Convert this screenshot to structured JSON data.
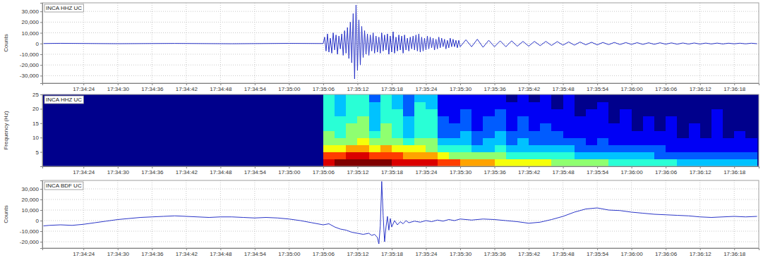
{
  "chart_data": [
    {
      "type": "line",
      "title": "INCA HHZ UC",
      "y_label": "Counts",
      "color": "#2a35c8",
      "grid": true,
      "xlim": [
        16.8,
        142.3
      ],
      "ylim": [
        -37000,
        38000
      ],
      "xticks": [
        {
          "value": 24,
          "label": "17:34:24"
        },
        {
          "value": 30,
          "label": "17:34:30"
        },
        {
          "value": 36,
          "label": "17:34:36"
        },
        {
          "value": 42,
          "label": "17:34:42"
        },
        {
          "value": 48,
          "label": "17:34:48"
        },
        {
          "value": 54,
          "label": "17:34:54"
        },
        {
          "value": 60,
          "label": "17:35:00"
        },
        {
          "value": 66,
          "label": "17:35:06"
        },
        {
          "value": 72,
          "label": "17:35:12"
        },
        {
          "value": 78,
          "label": "17:35:18"
        },
        {
          "value": 84,
          "label": "17:35:24"
        },
        {
          "value": 90,
          "label": "17:35:30"
        },
        {
          "value": 96,
          "label": "17:35:36"
        },
        {
          "value": 102,
          "label": "17:35:42"
        },
        {
          "value": 108,
          "label": "17:35:48"
        },
        {
          "value": 114,
          "label": "17:35:54"
        },
        {
          "value": 120,
          "label": "17:36:00"
        },
        {
          "value": 126,
          "label": "17:36:06"
        },
        {
          "value": 132,
          "label": "17:36:12"
        },
        {
          "value": 138,
          "label": "17:36:18"
        }
      ],
      "yticks": [
        {
          "value": 30000,
          "label": "30,000"
        },
        {
          "value": 20000,
          "label": "20,000"
        },
        {
          "value": 10000,
          "label": "10,000"
        },
        0,
        {
          "value": -10000,
          "label": "-10,000"
        },
        {
          "value": -20000,
          "label": "-20,000"
        },
        {
          "value": -30000,
          "label": "-30,000"
        }
      ],
      "x": [
        17,
        20,
        30,
        40,
        50,
        60,
        66,
        66.25,
        66.5,
        66.75,
        67,
        67.25,
        67.5,
        67.75,
        68,
        68.25,
        68.5,
        68.75,
        69,
        69.25,
        69.5,
        69.75,
        70,
        70.25,
        70.5,
        70.75,
        71,
        71.25,
        71.5,
        71.75,
        72,
        72.25,
        72.5,
        72.75,
        73,
        73.25,
        73.5,
        73.75,
        74,
        74.25,
        74.5,
        74.75,
        75,
        75.25,
        75.5,
        75.75,
        76,
        76.25,
        76.5,
        76.75,
        77,
        77.25,
        77.5,
        77.75,
        78,
        78.25,
        78.5,
        78.75,
        79,
        79.25,
        79.5,
        79.75,
        80,
        80.25,
        80.5,
        80.75,
        81,
        81.25,
        81.5,
        81.75,
        82,
        82.25,
        82.5,
        82.75,
        83,
        83.25,
        83.5,
        83.75,
        84,
        84.25,
        84.5,
        84.75,
        85,
        85.25,
        85.5,
        85.75,
        86,
        86.25,
        86.5,
        86.75,
        87,
        87.25,
        87.5,
        87.75,
        88,
        88.25,
        88.5,
        88.75,
        89,
        89.25,
        89.5,
        89.75,
        90,
        91,
        92,
        93,
        94,
        95,
        96,
        97,
        98,
        99,
        100,
        101,
        102,
        103,
        104,
        105,
        106,
        107,
        108,
        109,
        110,
        111,
        112,
        113,
        114,
        115,
        116,
        117,
        118,
        119,
        120,
        121,
        122,
        123,
        124,
        125,
        126,
        127,
        128,
        129,
        130,
        131,
        132,
        133,
        134,
        135,
        136,
        137,
        138,
        139,
        140,
        141,
        142
      ],
      "values": [
        0,
        200,
        -150,
        100,
        -200,
        150,
        0,
        6000,
        -7000,
        9000,
        -8000,
        5000,
        -9000,
        10000,
        -6000,
        8000,
        -10000,
        7000,
        -5000,
        9000,
        -11000,
        12000,
        -9000,
        15000,
        -14000,
        20000,
        -18000,
        28000,
        -33000,
        36000,
        -25000,
        22000,
        -20000,
        16000,
        -13000,
        12000,
        -10000,
        9000,
        -11000,
        8000,
        -7000,
        10000,
        -9000,
        7000,
        -8000,
        6000,
        -9000,
        10000,
        -7000,
        8000,
        -6000,
        9000,
        -10000,
        7000,
        -8000,
        11000,
        -9000,
        6000,
        -7000,
        8000,
        -6000,
        7000,
        -9000,
        8000,
        -6000,
        5000,
        -7000,
        6000,
        -5000,
        7000,
        -6000,
        8000,
        -7000,
        9000,
        -8000,
        6000,
        -7000,
        5000,
        -6000,
        7000,
        -5000,
        6000,
        -4000,
        5000,
        -6000,
        4000,
        -5000,
        6000,
        -4000,
        5000,
        -3000,
        4000,
        -5000,
        3000,
        -4000,
        5000,
        -3000,
        4000,
        -3000,
        3000,
        -4000,
        3000,
        -3000,
        3500,
        -3000,
        4000,
        -3500,
        3000,
        -3000,
        2500,
        -3000,
        2500,
        -2500,
        2000,
        -2500,
        2000,
        -2000,
        2000,
        -1800,
        1800,
        -1500,
        1500,
        -1500,
        1400,
        -1200,
        1200,
        -1200,
        1000,
        -1000,
        1000,
        -900,
        900,
        -800,
        800,
        -800,
        700,
        -700,
        700,
        -600,
        600,
        -600,
        500,
        -500,
        500,
        -500,
        400,
        -400,
        400,
        -400,
        300,
        -300,
        300,
        -300,
        300,
        -200
      ]
    },
    {
      "type": "heatmap",
      "title": "INCA HHZ UC",
      "y_label": "Frequency (Hz)",
      "grid": false,
      "xlim": [
        16.8,
        142.3
      ],
      "ylim": [
        0,
        25
      ],
      "zlim": [
        0,
        10
      ],
      "xticks": [
        {
          "value": 24,
          "label": "17:34:24"
        },
        {
          "value": 30,
          "label": "17:34:30"
        },
        {
          "value": 36,
          "label": "17:34:36"
        },
        {
          "value": 42,
          "label": "17:34:42"
        },
        {
          "value": 48,
          "label": "17:34:48"
        },
        {
          "value": 54,
          "label": "17:34:54"
        },
        {
          "value": 60,
          "label": "17:35:00"
        },
        {
          "value": 66,
          "label": "17:35:06"
        },
        {
          "value": 72,
          "label": "17:35:12"
        },
        {
          "value": 78,
          "label": "17:35:18"
        },
        {
          "value": 84,
          "label": "17:35:24"
        },
        {
          "value": 90,
          "label": "17:35:30"
        },
        {
          "value": 96,
          "label": "17:35:36"
        },
        {
          "value": 102,
          "label": "17:35:42"
        },
        {
          "value": 108,
          "label": "17:35:48"
        },
        {
          "value": 114,
          "label": "17:35:54"
        },
        {
          "value": 120,
          "label": "17:36:00"
        },
        {
          "value": 126,
          "label": "17:36:06"
        },
        {
          "value": 132,
          "label": "17:36:12"
        },
        {
          "value": 138,
          "label": "17:36:18"
        }
      ],
      "yticks": [
        5,
        10,
        15,
        20,
        25
      ],
      "time_bins": [
        66,
        68,
        70,
        72,
        74,
        76,
        78,
        80,
        82,
        84,
        86,
        88,
        90,
        92,
        94,
        96,
        98,
        100,
        102,
        104,
        106,
        108,
        110,
        112,
        114,
        116,
        118,
        120,
        122,
        124,
        126,
        128,
        130,
        132,
        134,
        136,
        138,
        140,
        142
      ],
      "freq_bins": [
        0,
        2.5,
        5,
        7.5,
        10,
        12.5,
        15,
        17.5,
        20,
        22.5,
        25
      ],
      "z": [
        [
          9,
          8,
          6,
          5,
          5,
          4,
          4,
          4,
          4,
          4
        ],
        [
          10,
          8,
          6,
          5,
          4,
          4,
          4,
          3,
          3,
          3
        ],
        [
          10,
          9,
          7,
          5,
          5,
          5,
          4,
          4,
          4,
          4
        ],
        [
          10,
          9,
          7,
          6,
          5,
          5,
          5,
          4,
          4,
          4
        ],
        [
          10,
          8,
          6,
          5,
          4,
          3,
          3,
          3,
          3,
          2
        ],
        [
          10,
          8,
          7,
          5,
          5,
          5,
          4,
          4,
          4,
          4
        ],
        [
          9,
          8,
          6,
          5,
          4,
          4,
          4,
          4,
          3,
          3
        ],
        [
          9,
          7,
          6,
          4,
          3,
          3,
          3,
          2,
          2,
          2
        ],
        [
          9,
          7,
          6,
          5,
          4,
          4,
          4,
          4,
          4,
          3
        ],
        [
          9,
          7,
          5,
          5,
          4,
          4,
          4,
          4,
          3,
          3
        ],
        [
          8,
          6,
          4,
          3,
          2,
          2,
          2,
          1,
          1,
          1
        ],
        [
          8,
          5,
          4,
          3,
          2,
          2,
          1,
          1,
          1,
          1
        ],
        [
          7,
          5,
          4,
          3,
          3,
          2,
          2,
          2,
          1,
          1
        ],
        [
          7,
          5,
          3,
          2,
          2,
          1,
          1,
          1,
          1,
          1
        ],
        [
          7,
          5,
          3,
          3,
          2,
          2,
          2,
          1,
          1,
          1
        ],
        [
          6,
          5,
          4,
          3,
          3,
          2,
          2,
          2,
          1,
          1
        ],
        [
          6,
          4,
          3,
          2,
          2,
          1,
          1,
          1,
          1,
          0
        ],
        [
          6,
          4,
          3,
          3,
          2,
          2,
          2,
          1,
          1,
          1
        ],
        [
          6,
          4,
          3,
          2,
          2,
          1,
          1,
          1,
          1,
          0
        ],
        [
          6,
          4,
          3,
          2,
          2,
          2,
          1,
          1,
          1,
          1
        ],
        [
          5,
          4,
          3,
          2,
          2,
          1,
          1,
          1,
          0,
          0
        ],
        [
          5,
          4,
          3,
          2,
          1,
          1,
          1,
          1,
          1,
          1
        ],
        [
          5,
          3,
          2,
          2,
          1,
          1,
          1,
          0,
          0,
          0
        ],
        [
          5,
          3,
          2,
          1,
          1,
          1,
          1,
          1,
          0,
          0
        ],
        [
          5,
          3,
          2,
          2,
          1,
          1,
          1,
          1,
          1,
          0
        ],
        [
          4,
          3,
          2,
          1,
          1,
          1,
          0,
          0,
          0,
          0
        ],
        [
          4,
          3,
          2,
          1,
          1,
          1,
          1,
          1,
          0,
          0
        ],
        [
          4,
          3,
          2,
          1,
          1,
          0,
          0,
          0,
          0,
          0
        ],
        [
          4,
          3,
          2,
          1,
          1,
          1,
          1,
          0,
          0,
          0
        ],
        [
          4,
          2,
          2,
          1,
          1,
          0,
          0,
          0,
          0,
          0
        ],
        [
          4,
          2,
          1,
          1,
          1,
          1,
          1,
          0,
          0,
          0
        ],
        [
          3,
          2,
          1,
          1,
          0,
          0,
          0,
          0,
          0,
          0
        ],
        [
          3,
          2,
          1,
          1,
          1,
          1,
          0,
          0,
          0,
          0
        ],
        [
          3,
          2,
          1,
          1,
          0,
          0,
          0,
          0,
          0,
          0
        ],
        [
          3,
          2,
          1,
          1,
          1,
          1,
          1,
          1,
          0,
          0
        ],
        [
          3,
          2,
          1,
          1,
          0,
          0,
          0,
          0,
          0,
          0
        ],
        [
          3,
          2,
          1,
          1,
          1,
          0,
          0,
          0,
          0,
          0
        ],
        [
          3,
          2,
          1,
          1,
          0,
          0,
          0,
          0,
          0,
          0
        ]
      ]
    },
    {
      "type": "line",
      "title": "INCA BDF UC",
      "y_label": "Counts",
      "color": "#2a35c8",
      "grid": true,
      "xlim": [
        16.8,
        142.3
      ],
      "ylim": [
        -26000,
        38000
      ],
      "xticks": [
        {
          "value": 24,
          "label": "17:34:24"
        },
        {
          "value": 30,
          "label": "17:34:30"
        },
        {
          "value": 36,
          "label": "17:34:36"
        },
        {
          "value": 42,
          "label": "17:34:42"
        },
        {
          "value": 48,
          "label": "17:34:48"
        },
        {
          "value": 54,
          "label": "17:34:54"
        },
        {
          "value": 60,
          "label": "17:35:00"
        },
        {
          "value": 66,
          "label": "17:35:06"
        },
        {
          "value": 72,
          "label": "17:35:12"
        },
        {
          "value": 78,
          "label": "17:35:18"
        },
        {
          "value": 84,
          "label": "17:35:24"
        },
        {
          "value": 90,
          "label": "17:35:30"
        },
        {
          "value": 96,
          "label": "17:35:36"
        },
        {
          "value": 102,
          "label": "17:35:42"
        },
        {
          "value": 108,
          "label": "17:35:48"
        },
        {
          "value": 114,
          "label": "17:35:54"
        },
        {
          "value": 120,
          "label": "17:36:00"
        },
        {
          "value": 126,
          "label": "17:36:06"
        },
        {
          "value": 132,
          "label": "17:36:12"
        },
        {
          "value": 138,
          "label": "17:36:18"
        }
      ],
      "yticks": [
        {
          "value": 30000,
          "label": "30,000"
        },
        {
          "value": 20000,
          "label": "20,000"
        },
        {
          "value": 10000,
          "label": "10,000"
        },
        0,
        {
          "value": -10000,
          "label": "-10,000"
        },
        {
          "value": -20000,
          "label": "-20,000"
        }
      ],
      "x": [
        17,
        18,
        20,
        22,
        24,
        26,
        28,
        30,
        32,
        34,
        36,
        38,
        40,
        42,
        44,
        46,
        48,
        50,
        52,
        54,
        56,
        58,
        60,
        62,
        64,
        66,
        67,
        68,
        69,
        70,
        71,
        72,
        73,
        74,
        74.5,
        75,
        75.5,
        75.75,
        76,
        76.25,
        76.5,
        76.75,
        77,
        77.25,
        77.5,
        77.75,
        78,
        78.5,
        79,
        79.5,
        80,
        80.5,
        81,
        82,
        83,
        84,
        85,
        86,
        87,
        88,
        89,
        90,
        92,
        94,
        96,
        98,
        100,
        102,
        104,
        106,
        108,
        110,
        112,
        114,
        116,
        118,
        120,
        122,
        124,
        126,
        128,
        130,
        132,
        134,
        136,
        138,
        140,
        142
      ],
      "values": [
        -5000,
        -4500,
        -4000,
        -4500,
        -3500,
        -2000,
        -500,
        1000,
        2000,
        3000,
        3500,
        4000,
        4500,
        4000,
        3500,
        3000,
        3500,
        3500,
        3000,
        2500,
        3000,
        2500,
        1500,
        0,
        -2000,
        -4000,
        -3000,
        -6000,
        -8000,
        -9000,
        -11000,
        -12000,
        -13000,
        -12000,
        -14000,
        -13000,
        -16000,
        -22000,
        -5000,
        37000,
        5000,
        -20000,
        -6000,
        4000,
        -9000,
        2000,
        -6000,
        0,
        -4000,
        -1000,
        -3000,
        0,
        -2000,
        -500,
        -1500,
        0,
        -1000,
        500,
        -500,
        1000,
        0,
        1500,
        500,
        1500,
        1000,
        0,
        -1000,
        -2500,
        -1500,
        1000,
        4000,
        8000,
        11000,
        12000,
        10000,
        9500,
        8000,
        7000,
        6000,
        5500,
        5000,
        4500,
        3500,
        3000,
        3500,
        4000,
        3500,
        4000
      ]
    }
  ]
}
